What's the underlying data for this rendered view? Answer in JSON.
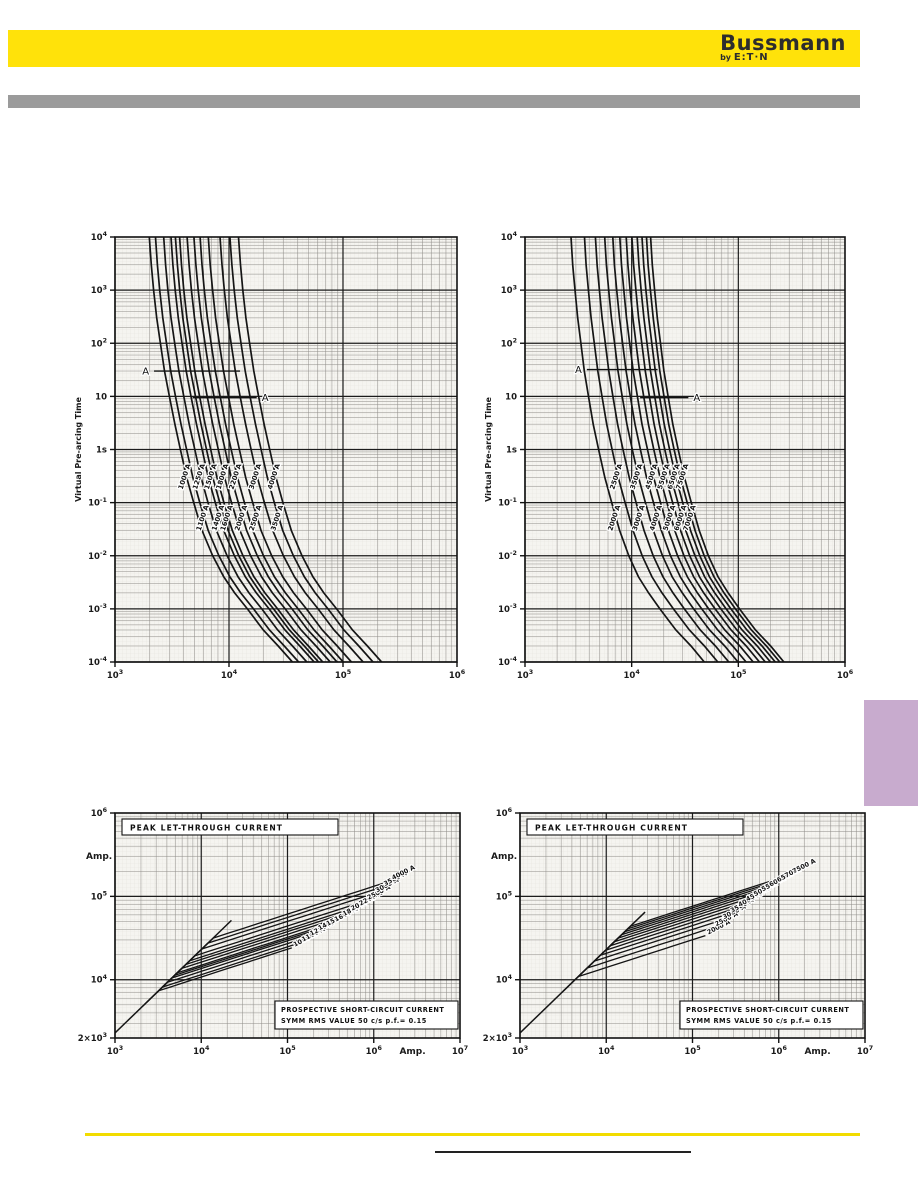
{
  "page": {
    "header": {
      "brand": "Bussmann",
      "byline_by": "by",
      "byline_brand": "E:T·N",
      "band_color": "#ffe20a",
      "text_color": "#2d2d2d"
    },
    "divider_bar_color": "#9b9b9b",
    "side_tab_color": "#c8abce",
    "footer_line_color": "#f2dc00"
  },
  "chart_data": [
    {
      "id": "tcc-left",
      "type": "line",
      "title": "",
      "ylabel": "Virtual Pre-arcing Time",
      "xlim": [
        3,
        6
      ],
      "ylim": [
        -4,
        4
      ],
      "x_ticks": [
        {
          "e": 3,
          "l": "10^3"
        },
        {
          "e": 4,
          "l": "10^4"
        },
        {
          "e": 5,
          "l": "10^5"
        },
        {
          "e": 6,
          "l": "10^6"
        }
      ],
      "y_ticks": [
        {
          "e": 4,
          "l": "10^4"
        },
        {
          "e": 3,
          "l": "10^3"
        },
        {
          "e": 2,
          "l": "10^2"
        },
        {
          "e": 1,
          "l": "10"
        },
        {
          "e": 0,
          "l": "1s"
        },
        {
          "e": -1,
          "l": "10^-1"
        },
        {
          "e": -2,
          "l": "10^-2"
        },
        {
          "e": -3,
          "l": "10^-3"
        },
        {
          "e": -4,
          "l": "10^-4"
        }
      ],
      "spread_base": 1000,
      "spread": 0.3,
      "label_parity_top": 0,
      "label_t_top": 0.3,
      "label_t_bot": 0.05,
      "shape": [
        [
          10000,
          2.0
        ],
        [
          3000,
          2.08
        ],
        [
          1000,
          2.18
        ],
        [
          300,
          2.32
        ],
        [
          100,
          2.5
        ],
        [
          30,
          2.72
        ],
        [
          10,
          3.0
        ],
        [
          3,
          3.35
        ],
        [
          1,
          3.75
        ],
        [
          0.3,
          4.25
        ],
        [
          0.1,
          4.9
        ],
        [
          0.03,
          5.8
        ],
        [
          0.01,
          7.2
        ],
        [
          0.004,
          9.0
        ],
        [
          0.002,
          11.2
        ],
        [
          0.001,
          14.5
        ],
        [
          0.0004,
          20
        ],
        [
          0.0002,
          27
        ],
        [
          0.0001,
          36
        ]
      ],
      "series": [
        {
          "label": "1000 A",
          "rating": 1000
        },
        {
          "label": "1100 A",
          "rating": 1100
        },
        {
          "label": "1250 A",
          "rating": 1250
        },
        {
          "label": "1400 A",
          "rating": 1400
        },
        {
          "label": "1500 A",
          "rating": 1500
        },
        {
          "label": "1600 A",
          "rating": 1600
        },
        {
          "label": "1800 A",
          "rating": 1800
        },
        {
          "label": "2000 A",
          "rating": 2000
        },
        {
          "label": "2200 A",
          "rating": 2200
        },
        {
          "label": "2500 A",
          "rating": 2500
        },
        {
          "label": "3000 A",
          "rating": 3000
        },
        {
          "label": "3500 A",
          "rating": 3500
        },
        {
          "label": "4000 A",
          "rating": 4000
        }
      ],
      "annotations": [
        {
          "label": "A",
          "t": 30,
          "x1": 2200,
          "x2": 12500,
          "side": "left"
        },
        {
          "label": "A",
          "t": 9.5,
          "x1": 4800,
          "x2": 17500,
          "side": "right"
        }
      ]
    },
    {
      "id": "tcc-right",
      "type": "line",
      "title": "",
      "ylabel": "Virtual Pre-arcing Time",
      "xlim": [
        3,
        6
      ],
      "ylim": [
        -4,
        4
      ],
      "x_ticks": [
        {
          "e": 3,
          "l": "10^3"
        },
        {
          "e": 4,
          "l": "10^4"
        },
        {
          "e": 5,
          "l": "10^5"
        },
        {
          "e": 6,
          "l": "10^6"
        }
      ],
      "y_ticks": [
        {
          "e": 4,
          "l": "10^4"
        },
        {
          "e": 3,
          "l": "10^3"
        },
        {
          "e": 2,
          "l": "10^2"
        },
        {
          "e": 1,
          "l": "10"
        },
        {
          "e": 0,
          "l": "1s"
        },
        {
          "e": -1,
          "l": "10^-1"
        },
        {
          "e": -2,
          "l": "10^-2"
        },
        {
          "e": -3,
          "l": "10^-3"
        },
        {
          "e": -4,
          "l": "10^-4"
        }
      ],
      "spread_base": 2000,
      "spread": 0.3,
      "label_parity_top": 1,
      "label_t_top": 0.3,
      "label_t_bot": 0.05,
      "shape": [
        [
          10000,
          1.35
        ],
        [
          3000,
          1.4
        ],
        [
          1000,
          1.47
        ],
        [
          300,
          1.56
        ],
        [
          100,
          1.67
        ],
        [
          30,
          1.8
        ],
        [
          10,
          1.97
        ],
        [
          3,
          2.18
        ],
        [
          1,
          2.45
        ],
        [
          0.3,
          2.8
        ],
        [
          0.1,
          3.25
        ],
        [
          0.03,
          3.85
        ],
        [
          0.01,
          4.7
        ],
        [
          0.004,
          5.8
        ],
        [
          0.002,
          7.2
        ],
        [
          0.001,
          9.2
        ],
        [
          0.0004,
          13
        ],
        [
          0.0002,
          18
        ],
        [
          0.0001,
          24
        ]
      ],
      "series": [
        {
          "label": "2000 A",
          "rating": 2000
        },
        {
          "label": "2500 A",
          "rating": 2500
        },
        {
          "label": "3000 A",
          "rating": 3000
        },
        {
          "label": "3500 A",
          "rating": 3500
        },
        {
          "label": "4000 A",
          "rating": 4000
        },
        {
          "label": "4500 A",
          "rating": 4500
        },
        {
          "label": "5000 A",
          "rating": 5000
        },
        {
          "label": "5500 A",
          "rating": 5500
        },
        {
          "label": "6000 A",
          "rating": 6000
        },
        {
          "label": "6500 A",
          "rating": 6500
        },
        {
          "label": "7000 A",
          "rating": 7000
        },
        {
          "label": "7500 A",
          "rating": 7500
        }
      ],
      "annotations": [
        {
          "label": "A",
          "t": 32,
          "x1": 3800,
          "x2": 17500,
          "side": "left"
        },
        {
          "label": "A",
          "t": 9.5,
          "x1": 12000,
          "x2": 34000,
          "side": "right"
        }
      ]
    },
    {
      "id": "lt-left",
      "type": "line",
      "title": "PEAK  LET-THROUGH  CURRENT",
      "y_axis_unit": "Amp.",
      "x_axis_unit": "Amp.",
      "xlim": [
        3,
        7
      ],
      "ylim": [
        3.301,
        6
      ],
      "x_ticks": [
        {
          "e": 3,
          "l": "10^3"
        },
        {
          "e": 4,
          "l": "10^4"
        },
        {
          "e": 5,
          "l": "10^5"
        },
        {
          "e": 6,
          "l": "10^6"
        },
        {
          "e": 7,
          "l": "10^7"
        }
      ],
      "x_unit_e": 6.45,
      "y_ticks": [
        {
          "e": 6,
          "l": "10^6"
        },
        {
          "e": 5,
          "l": "10^5"
        },
        {
          "e": 4,
          "l": "10^4"
        },
        {
          "e": 3.301,
          "l": "2×10^3"
        }
      ],
      "prospective_factor": 2.3,
      "prosp_to_exp": 4.35,
      "note_box": [
        "PROSPECTIVE  SHORT-CIRCUIT  CURRENT",
        "SYMM  RMS  VALUE    50 c/s   p.f.= 0.15"
      ],
      "series": [
        {
          "label": "1000 A",
          "rating": 1000,
          "p6": 50000,
          "end_exp": 5.05
        },
        {
          "label": "1100 A",
          "rating": 1100,
          "p6": 53450,
          "end_exp": 5.145
        },
        {
          "label": "1250 A",
          "rating": 1250,
          "p6": 58450,
          "end_exp": 5.24
        },
        {
          "label": "1400 A",
          "rating": 1400,
          "p6": 63250,
          "end_exp": 5.335
        },
        {
          "label": "1500 A",
          "rating": 1500,
          "p6": 66400,
          "end_exp": 5.43
        },
        {
          "label": "1600 A",
          "rating": 1600,
          "p6": 69450,
          "end_exp": 5.525
        },
        {
          "label": "1800 A",
          "rating": 1800,
          "p6": 75450,
          "end_exp": 5.62
        },
        {
          "label": "2000 A",
          "rating": 2000,
          "p6": 81250,
          "end_exp": 5.715
        },
        {
          "label": "2200 A",
          "rating": 2200,
          "p6": 86850,
          "end_exp": 5.81
        },
        {
          "label": "2500 A",
          "rating": 2500,
          "p6": 94950,
          "end_exp": 5.905
        },
        {
          "label": "3000 A",
          "rating": 3000,
          "p6": 107900,
          "end_exp": 6.0
        },
        {
          "label": "3500 A",
          "rating": 3500,
          "p6": 120200,
          "end_exp": 6.095
        },
        {
          "label": "4000 A",
          "rating": 4000,
          "p6": 131950,
          "end_exp": 6.19
        }
      ]
    },
    {
      "id": "lt-right",
      "type": "line",
      "title": "PEAK  LET-THROUGH  CURRENT",
      "y_axis_unit": "Amp.",
      "x_axis_unit": "Amp.",
      "xlim": [
        3,
        7
      ],
      "ylim": [
        3.301,
        6
      ],
      "x_ticks": [
        {
          "e": 3,
          "l": "10^3"
        },
        {
          "e": 4,
          "l": "10^4"
        },
        {
          "e": 5,
          "l": "10^5"
        },
        {
          "e": 6,
          "l": "10^6"
        },
        {
          "e": 7,
          "l": "10^7"
        }
      ],
      "x_unit_e": 6.45,
      "y_ticks": [
        {
          "e": 6,
          "l": "10^6"
        },
        {
          "e": 5,
          "l": "10^5"
        },
        {
          "e": 4,
          "l": "10^4"
        },
        {
          "e": 3.301,
          "l": "2×10^3"
        }
      ],
      "prospective_factor": 2.3,
      "prosp_to_exp": 4.45,
      "note_box": [
        "PROSPECTIVE  SHORT-CIRCUIT  CURRENT",
        "SYMM  RMS  VALUE    50 c/s   p.f.= 0.15"
      ],
      "series": [
        {
          "label": "2000 A",
          "rating": 2000,
          "p6": 65000,
          "end_exp": 5.15
        },
        {
          "label": "2500 A",
          "rating": 2500,
          "p6": 75990,
          "end_exp": 5.24
        },
        {
          "label": "3000 A",
          "rating": 3000,
          "p6": 86320,
          "end_exp": 5.33
        },
        {
          "label": "3500 A",
          "rating": 3500,
          "p6": 96170,
          "end_exp": 5.42
        },
        {
          "label": "4000 A",
          "rating": 4000,
          "p6": 105600,
          "end_exp": 5.51
        },
        {
          "label": "4500 A",
          "rating": 4500,
          "p6": 114660,
          "end_exp": 5.6
        },
        {
          "label": "5000 A",
          "rating": 5000,
          "p6": 123400,
          "end_exp": 5.69
        },
        {
          "label": "5500 A",
          "rating": 5500,
          "p6": 131950,
          "end_exp": 5.78
        },
        {
          "label": "6000 A",
          "rating": 6000,
          "p6": 140270,
          "end_exp": 5.87
        },
        {
          "label": "6500 A",
          "rating": 6500,
          "p6": 148330,
          "end_exp": 5.96
        },
        {
          "label": "7000 A",
          "rating": 7000,
          "p6": 156260,
          "end_exp": 6.05
        },
        {
          "label": "7500 A",
          "rating": 7500,
          "p6": 163980,
          "end_exp": 6.14
        }
      ]
    }
  ]
}
